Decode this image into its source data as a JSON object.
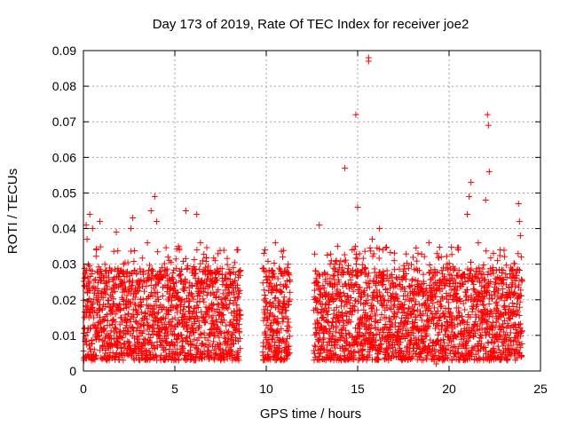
{
  "chart_data": {
    "type": "scatter",
    "title": "Day 173 of 2019, Rate Of TEC Index for receiver joe2",
    "xlabel": "GPS time / hours",
    "ylabel": "ROTI / TECUs",
    "xlim": [
      0,
      25
    ],
    "ylim": [
      0,
      0.09
    ],
    "x_ticks": [
      0,
      5,
      10,
      15,
      20,
      25
    ],
    "y_ticks": [
      0,
      0.01,
      0.02,
      0.03,
      0.04,
      0.05,
      0.06,
      0.07,
      0.08,
      0.09
    ],
    "x_tick_labels": [
      "0",
      "5",
      "10",
      "15",
      "20",
      "25"
    ],
    "y_tick_labels": [
      "0",
      "0.01",
      "0.02",
      "0.03",
      "0.04",
      "0.05",
      "0.06",
      "0.07",
      "0.08",
      "0.09"
    ],
    "grid": true,
    "marker": "+",
    "color": "#ff0000",
    "data_gaps_hours": [
      [
        8.6,
        9.8
      ],
      [
        11.3,
        12.6
      ]
    ],
    "series": [
      {
        "name": "ROTI",
        "points": [
          [
            0.05,
            0.026
          ],
          [
            0.1,
            0.009
          ],
          [
            0.15,
            0.041
          ],
          [
            0.2,
            0.037
          ],
          [
            0.3,
            0.015
          ],
          [
            0.35,
            0.044
          ],
          [
            0.4,
            0.012
          ],
          [
            0.5,
            0.04
          ],
          [
            0.6,
            0.006
          ],
          [
            0.7,
            0.034
          ],
          [
            0.8,
            0.02
          ],
          [
            0.9,
            0.042
          ],
          [
            1.0,
            0.011
          ],
          [
            1.2,
            0.028
          ],
          [
            1.4,
            0.007
          ],
          [
            1.6,
            0.022
          ],
          [
            1.8,
            0.039
          ],
          [
            2.0,
            0.013
          ],
          [
            2.2,
            0.03
          ],
          [
            2.4,
            0.005
          ],
          [
            2.6,
            0.04
          ],
          [
            2.7,
            0.043
          ],
          [
            2.9,
            0.017
          ],
          [
            3.1,
            0.025
          ],
          [
            3.3,
            0.009
          ],
          [
            3.5,
            0.036
          ],
          [
            3.7,
            0.045
          ],
          [
            3.9,
            0.049
          ],
          [
            4.0,
            0.042
          ],
          [
            4.1,
            0.014
          ],
          [
            4.3,
            0.029
          ],
          [
            4.5,
            0.006
          ],
          [
            4.7,
            0.031
          ],
          [
            4.9,
            0.018
          ],
          [
            5.2,
            0.035
          ],
          [
            5.4,
            0.009
          ],
          [
            5.6,
            0.045
          ],
          [
            5.8,
            0.022
          ],
          [
            6.0,
            0.012
          ],
          [
            6.2,
            0.044
          ],
          [
            6.4,
            0.036
          ],
          [
            6.6,
            0.007
          ],
          [
            6.8,
            0.027
          ],
          [
            7.0,
            0.015
          ],
          [
            7.2,
            0.031
          ],
          [
            7.5,
            0.005
          ],
          [
            7.8,
            0.024
          ],
          [
            8.0,
            0.013
          ],
          [
            8.2,
            0.029
          ],
          [
            8.4,
            0.034
          ],
          [
            8.5,
            0.003
          ],
          [
            9.9,
            0.028
          ],
          [
            10.1,
            0.012
          ],
          [
            10.3,
            0.022
          ],
          [
            10.5,
            0.036
          ],
          [
            10.7,
            0.008
          ],
          [
            10.9,
            0.032
          ],
          [
            11.1,
            0.017
          ],
          [
            11.2,
            0.03
          ],
          [
            12.7,
            0.012
          ],
          [
            12.9,
            0.041
          ],
          [
            13.1,
            0.024
          ],
          [
            13.3,
            0.006
          ],
          [
            13.5,
            0.03
          ],
          [
            13.7,
            0.016
          ],
          [
            13.9,
            0.035
          ],
          [
            14.1,
            0.003
          ],
          [
            14.3,
            0.057
          ],
          [
            14.5,
            0.02
          ],
          [
            14.7,
            0.034
          ],
          [
            14.9,
            0.072
          ],
          [
            15.0,
            0.046
          ],
          [
            15.2,
            0.008
          ],
          [
            15.4,
            0.029
          ],
          [
            15.6,
            0.087
          ],
          [
            15.6,
            0.088
          ],
          [
            15.8,
            0.037
          ],
          [
            16.0,
            0.014
          ],
          [
            16.2,
            0.04
          ],
          [
            16.4,
            0.026
          ],
          [
            16.6,
            0.006
          ],
          [
            16.8,
            0.021
          ],
          [
            17.0,
            0.031
          ],
          [
            17.2,
            0.011
          ],
          [
            17.5,
            0.028
          ],
          [
            17.8,
            0.004
          ],
          [
            18.0,
            0.018
          ],
          [
            18.3,
            0.033
          ],
          [
            18.6,
            0.009
          ],
          [
            18.9,
            0.036
          ],
          [
            19.1,
            0.015
          ],
          [
            19.3,
            0.002
          ],
          [
            19.6,
            0.025
          ],
          [
            19.9,
            0.03
          ],
          [
            20.2,
            0.012
          ],
          [
            20.5,
            0.034
          ],
          [
            20.8,
            0.007
          ],
          [
            21.0,
            0.044
          ],
          [
            21.1,
            0.049
          ],
          [
            21.2,
            0.053
          ],
          [
            21.4,
            0.02
          ],
          [
            21.6,
            0.036
          ],
          [
            21.8,
            0.012
          ],
          [
            22.0,
            0.048
          ],
          [
            22.1,
            0.072
          ],
          [
            22.15,
            0.069
          ],
          [
            22.2,
            0.056
          ],
          [
            22.4,
            0.029
          ],
          [
            22.6,
            0.009
          ],
          [
            22.8,
            0.034
          ],
          [
            23.0,
            0.018
          ],
          [
            23.2,
            0.003
          ],
          [
            23.4,
            0.026
          ],
          [
            23.6,
            0.013
          ],
          [
            23.8,
            0.047
          ],
          [
            23.85,
            0.042
          ],
          [
            23.9,
            0.038
          ],
          [
            23.95,
            0.032
          ]
        ]
      }
    ],
    "density_note": "Dense band of points between ~0.003 and ~0.03 TECU across all observed hours"
  }
}
